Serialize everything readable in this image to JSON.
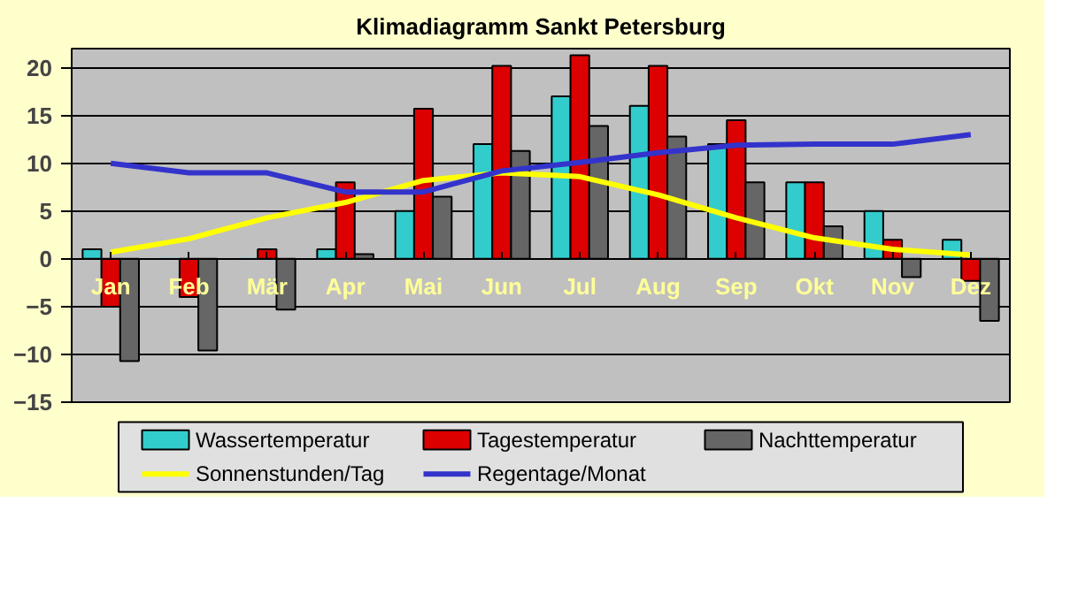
{
  "chart_data": {
    "type": "bar",
    "title": "Klimadiagramm Sankt Petersburg",
    "categories": [
      "Jan",
      "Feb",
      "Mär",
      "Apr",
      "Mai",
      "Jun",
      "Jul",
      "Aug",
      "Sep",
      "Okt",
      "Nov",
      "Dez"
    ],
    "series": [
      {
        "name": "Wassertemperatur",
        "color": "#33cccc",
        "values": [
          1,
          0,
          0,
          1,
          5,
          12,
          17,
          16,
          12,
          8,
          5,
          2
        ]
      },
      {
        "name": "Tagestemperatur",
        "color": "#dd0000",
        "values": [
          -5,
          -4,
          1,
          8,
          15.7,
          20.2,
          21.3,
          20.2,
          14.5,
          8,
          2,
          -2.3
        ]
      },
      {
        "name": "Nachttemperatur",
        "color": "#666666",
        "values": [
          -10.7,
          -9.6,
          -5.3,
          0.5,
          6.5,
          11.3,
          13.9,
          12.8,
          8,
          3.4,
          -1.9,
          -6.5
        ]
      },
      {
        "name": "Sonnenstunden/Tag",
        "type": "line",
        "color": "#ffff00",
        "values": [
          0.7,
          2.1,
          4.3,
          5.9,
          8.2,
          9,
          8.6,
          6.7,
          4.3,
          2.2,
          1,
          0.4
        ]
      },
      {
        "name": "Regentage/Monat",
        "type": "line",
        "color": "#3333cc",
        "values": [
          10,
          9,
          9,
          7,
          7,
          9.2,
          10.1,
          11.1,
          11.9,
          12,
          12,
          13
        ]
      }
    ],
    "ylim": [
      -15,
      22
    ],
    "yticks": [
      -15,
      -10,
      -5,
      0,
      5,
      10,
      15,
      20
    ],
    "grid": "y",
    "legend": "bottom"
  }
}
